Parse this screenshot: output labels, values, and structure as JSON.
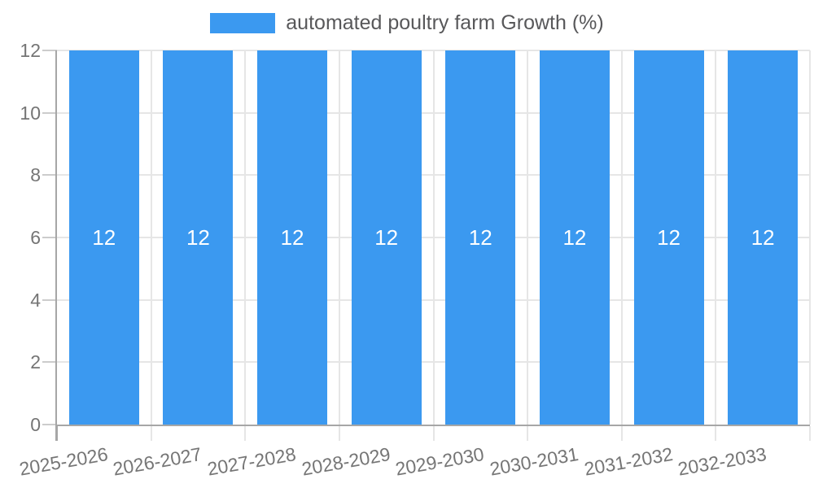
{
  "chart_data": {
    "type": "bar",
    "title": "",
    "legend": {
      "label": "automated poultry farm Growth (%)",
      "position": "top"
    },
    "categories": [
      "2025-2026",
      "2026-2027",
      "2027-2028",
      "2028-2029",
      "2029-2030",
      "2030-2031",
      "2031-2032",
      "2032-2033"
    ],
    "values": [
      12,
      12,
      12,
      12,
      12,
      12,
      12,
      12
    ],
    "bar_value_labels": [
      "12",
      "12",
      "12",
      "12",
      "12",
      "12",
      "12",
      "12"
    ],
    "xlabel": "",
    "ylabel": "",
    "y_ticks": [
      0,
      2,
      4,
      6,
      8,
      10,
      12
    ],
    "ylim": [
      0,
      12
    ],
    "grid": "on",
    "colors": {
      "bar": "#3b99f0",
      "grid_line": "#e6e6e6",
      "tick_mark": "#cccccc",
      "axis_line": "#a6a6a6",
      "tick_text": "#757575",
      "legend_text": "#58585a",
      "bar_label_text": "#ffffff",
      "background": "#ffffff"
    }
  }
}
